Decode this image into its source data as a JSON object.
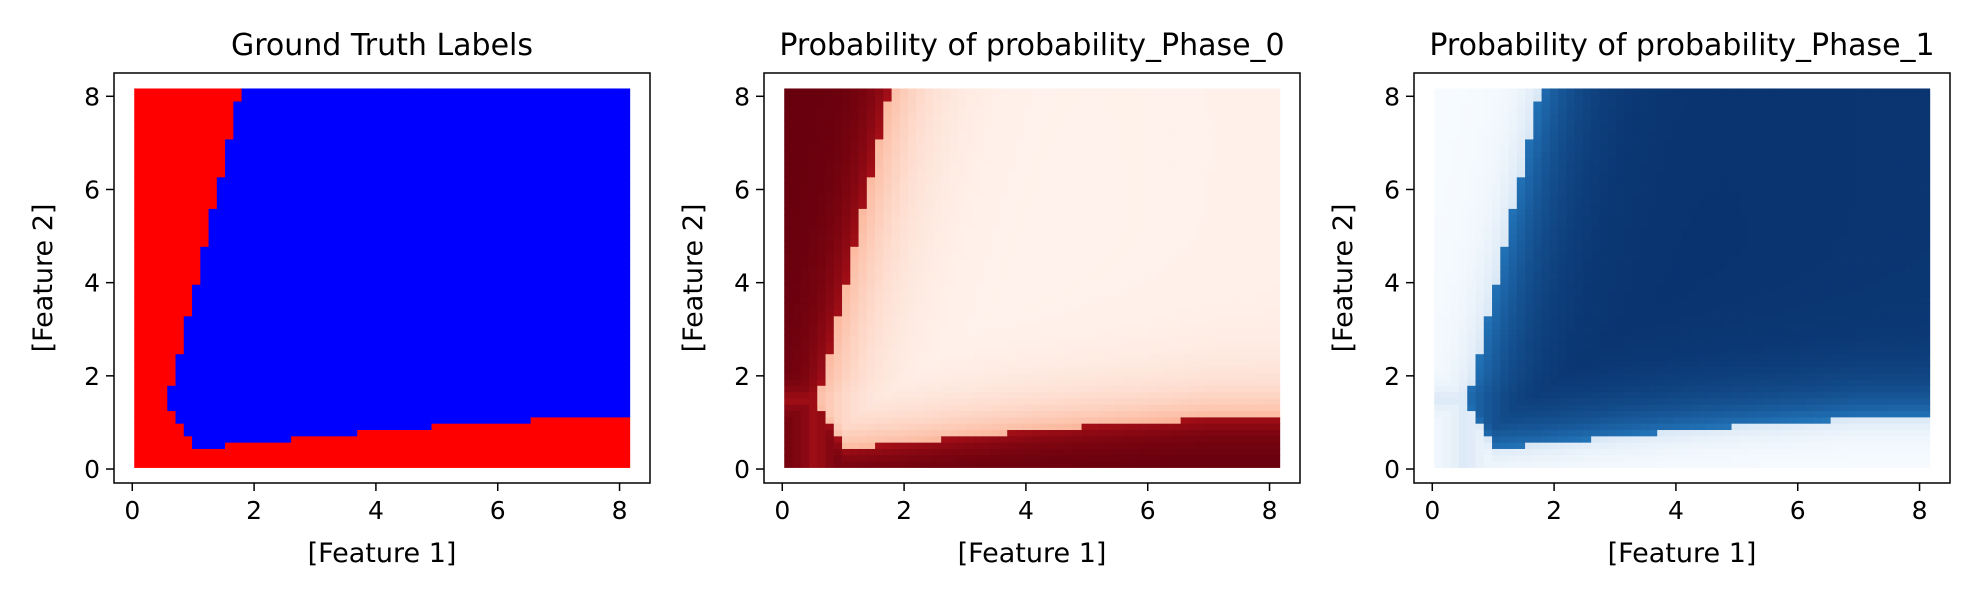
{
  "chart_data": [
    {
      "type": "scatter",
      "title": "Ground Truth Labels",
      "xlabel": "[Feature 1]",
      "ylabel": "[Feature 2]",
      "xlim": [
        -0.3,
        8.5
      ],
      "ylim": [
        -0.3,
        8.5
      ],
      "xticks": [
        "0",
        "2",
        "4",
        "6",
        "8"
      ],
      "yticks": [
        "0",
        "2",
        "4",
        "6",
        "8"
      ],
      "grid": false,
      "series": [
        {
          "color": "#ff0000",
          "description_value": 0
        },
        {
          "color": "#0000ff",
          "description_value": 1
        }
      ],
      "data_range": {
        "x": [
          0.1,
          8.1
        ],
        "y": [
          0.1,
          8.1
        ]
      },
      "upper_boundary": {
        "y": [
          8.1,
          6.0,
          4.0,
          2.0,
          1.6
        ],
        "x": [
          1.75,
          1.4,
          1.05,
          0.7,
          0.55
        ]
      },
      "lower_boundary": {
        "x": [
          0.55,
          1.0,
          2.0,
          3.0,
          4.0,
          5.0,
          6.0,
          7.0,
          8.1
        ],
        "y": [
          1.5,
          0.45,
          0.55,
          0.7,
          0.82,
          0.92,
          1.0,
          1.1,
          1.1
        ]
      }
    },
    {
      "type": "heatmap",
      "title": "Probability of probability_Phase_0",
      "xlabel": "[Feature 1]",
      "ylabel": "[Feature 2]",
      "xlim": [
        -0.3,
        8.5
      ],
      "ylim": [
        -0.3,
        8.5
      ],
      "xticks": [
        "0",
        "2",
        "4",
        "6",
        "8"
      ],
      "yticks": [
        "0",
        "2",
        "4",
        "6",
        "8"
      ],
      "colormap": "Reds",
      "grid": false,
      "phase_value": 0
    },
    {
      "type": "heatmap",
      "title": "Probability of probability_Phase_1",
      "xlabel": "[Feature 1]",
      "ylabel": "[Feature 2]",
      "xlim": [
        -0.3,
        8.5
      ],
      "ylim": [
        -0.3,
        8.5
      ],
      "xticks": [
        "0",
        "2",
        "4",
        "6",
        "8"
      ],
      "yticks": [
        "0",
        "2",
        "4",
        "6",
        "8"
      ],
      "colormap": "Blues",
      "grid": false,
      "phase_value": 1
    }
  ]
}
